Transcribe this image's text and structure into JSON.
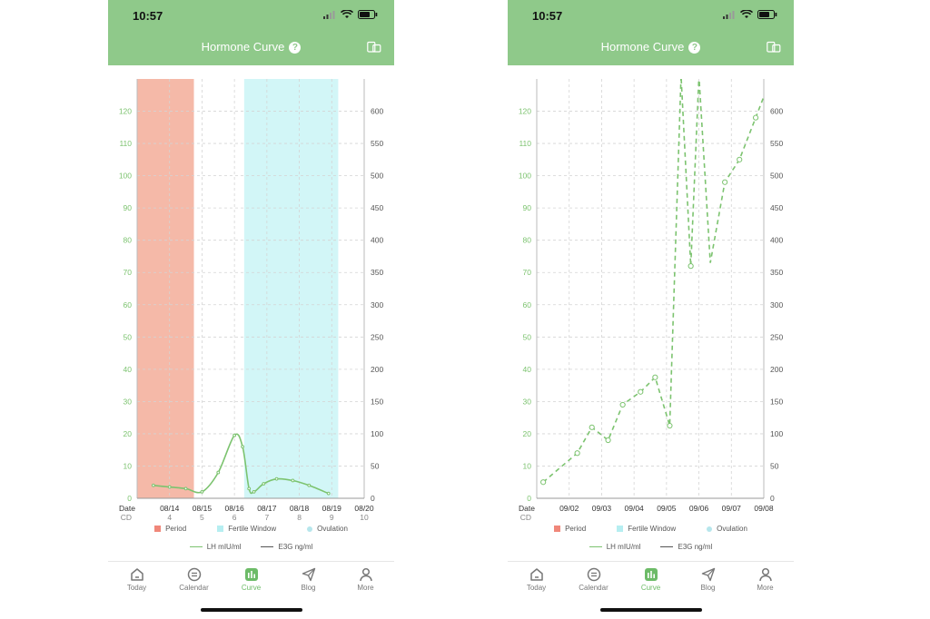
{
  "screens": [
    {
      "status": {
        "time": "10:57"
      },
      "header": {
        "title": "Hormone Curve",
        "help": "?"
      },
      "chart_data": {
        "type": "line",
        "left_axis": {
          "ticks": [
            "0",
            "10",
            "20",
            "30",
            "40",
            "50",
            "60",
            "70",
            "80",
            "90",
            "100",
            "110",
            "120"
          ],
          "range": [
            0,
            130
          ],
          "color": "#7cc36f"
        },
        "right_axis": {
          "ticks": [
            "0",
            "50",
            "100",
            "150",
            "200",
            "250",
            "300",
            "350",
            "400",
            "450",
            "500",
            "550",
            "600"
          ],
          "range": [
            0,
            650
          ]
        },
        "row_labels": {
          "date": "Date",
          "cd": "CD"
        },
        "x_labels": [
          "08/14",
          "08/15",
          "08/16",
          "08/17",
          "08/18",
          "08/19",
          "08/20"
        ],
        "cd_labels": [
          "4",
          "5",
          "6",
          "7",
          "8",
          "9",
          "10"
        ],
        "bands": [
          {
            "name": "Period",
            "from": 0,
            "to": 1.75,
            "color": "#f5b9a8"
          },
          {
            "name": "Fertile Window",
            "from": 3.3,
            "to": 6.2,
            "color": "#d2f6f7"
          }
        ],
        "series": [
          {
            "name": "LH mIU/ml",
            "style": "solid",
            "color": "#7cc36f",
            "x": [
              0.5,
              1.0,
              1.5,
              2.0,
              2.5,
              3.0,
              3.25,
              3.45,
              3.6,
              3.9,
              4.3,
              4.8,
              5.3,
              5.9
            ],
            "y": [
              4,
              3.5,
              3,
              2,
              8,
              19.5,
              16,
              3,
              2,
              4.5,
              6,
              5.5,
              4,
              1.5
            ]
          }
        ]
      },
      "legend": {
        "period": "Period",
        "fertile": "Fertile Window",
        "ovulation": "Ovulation",
        "lh": "LH mIU/ml",
        "e3g": "E3G ng/ml"
      },
      "tabs": [
        "Today",
        "Calendar",
        "Curve",
        "Blog",
        "More"
      ],
      "colors": {
        "header": "#8fc98a",
        "accent": "#6dbb68",
        "period": "#f5b9a8",
        "fertile": "#d2f6f7",
        "ovulation": "#b6e6ec"
      }
    },
    {
      "status": {
        "time": "10:57"
      },
      "header": {
        "title": "Hormone Curve",
        "help": "?"
      },
      "chart_data": {
        "type": "line",
        "left_axis": {
          "ticks": [
            "0",
            "10",
            "20",
            "30",
            "40",
            "50",
            "60",
            "70",
            "80",
            "90",
            "100",
            "110",
            "120"
          ],
          "range": [
            0,
            130
          ],
          "color": "#7cc36f"
        },
        "right_axis": {
          "ticks": [
            "0",
            "50",
            "100",
            "150",
            "200",
            "250",
            "300",
            "350",
            "400",
            "450",
            "500",
            "550",
            "600"
          ],
          "range": [
            0,
            650
          ]
        },
        "row_labels": {
          "date": "Date",
          "cd": "CD"
        },
        "x_labels": [
          "09/02",
          "09/03",
          "09/04",
          "09/05",
          "09/06",
          "09/07",
          "09/08"
        ],
        "cd_labels": [],
        "bands": [],
        "series": [
          {
            "name": "LH mIU/ml",
            "style": "dashed",
            "color": "#7cc36f",
            "x": [
              0.2,
              1.25,
              1.7,
              2.2,
              2.65,
              3.2,
              3.65,
              4.1,
              4.45,
              4.75,
              5.0,
              5.35,
              5.8,
              6.25,
              6.75,
              7.25
            ],
            "y": [
              5,
              14,
              22,
              18,
              29,
              33,
              37.5,
              22.5,
              131,
              72,
              131,
              73,
              98,
              105,
              118,
              131
            ],
            "markers": [
              true,
              true,
              true,
              true,
              true,
              true,
              true,
              true,
              false,
              true,
              false,
              false,
              true,
              true,
              true,
              false
            ]
          }
        ]
      },
      "legend": {
        "period": "Period",
        "fertile": "Fertile Window",
        "ovulation": "Ovulation",
        "lh": "LH mIU/ml",
        "e3g": "E3G ng/ml"
      },
      "tabs": [
        "Today",
        "Calendar",
        "Curve",
        "Blog",
        "More"
      ],
      "colors": {
        "header": "#8fc98a",
        "accent": "#6dbb68",
        "period": "#f5b9a8",
        "fertile": "#d2f6f7",
        "ovulation": "#b6e6ec"
      }
    }
  ]
}
